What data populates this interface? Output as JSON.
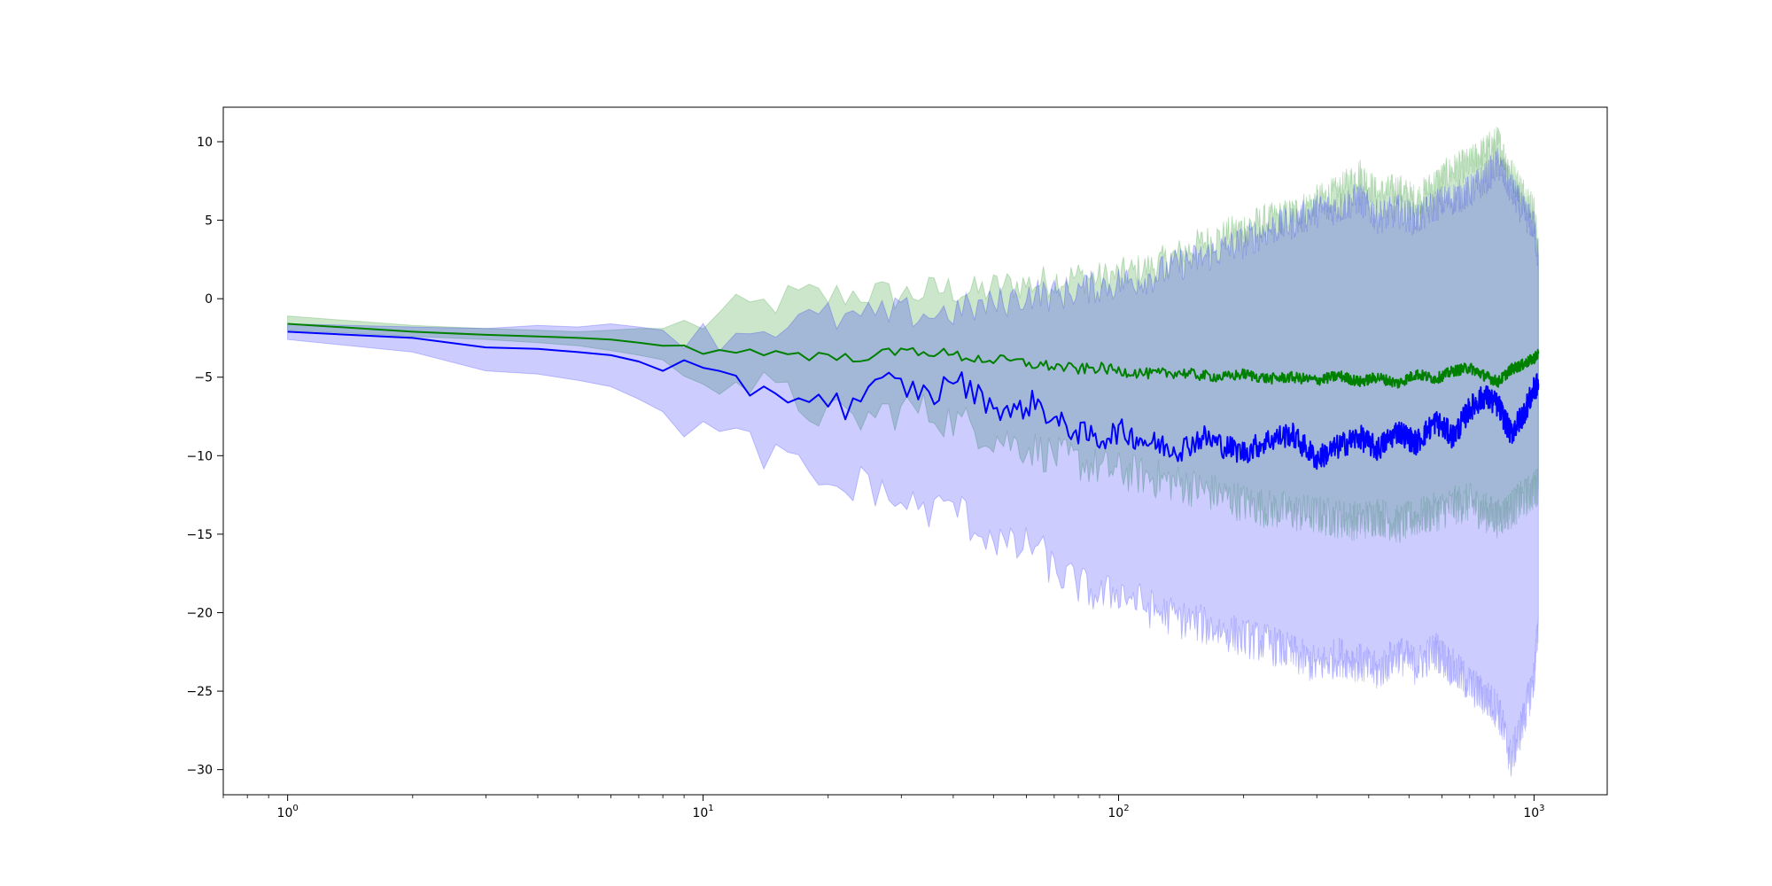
{
  "chart_data": {
    "type": "line",
    "title": "",
    "xlabel": "",
    "ylabel": "",
    "xscale": "log",
    "xlim": [
      0.7,
      1500
    ],
    "ylim": [
      -31.6,
      12.2
    ],
    "x_ticks": [
      {
        "value": 1,
        "base": "10",
        "exp": "0"
      },
      {
        "value": 10,
        "base": "10",
        "exp": "1"
      },
      {
        "value": 100,
        "base": "10",
        "exp": "2"
      },
      {
        "value": 1000,
        "base": "10",
        "exp": "3"
      }
    ],
    "y_ticks": [
      {
        "value": 10,
        "label": "10"
      },
      {
        "value": 5,
        "label": "5"
      },
      {
        "value": 0,
        "label": "0"
      },
      {
        "value": -5,
        "label": "−5"
      },
      {
        "value": -10,
        "label": "−10"
      },
      {
        "value": -15,
        "label": "−15"
      },
      {
        "value": -20,
        "label": "−20"
      },
      {
        "value": -25,
        "label": "−25"
      },
      {
        "value": -30,
        "label": "−30"
      }
    ],
    "grid": false,
    "legend": null,
    "series": [
      {
        "color": "#008000",
        "band_color": "#008000",
        "x": [
          1,
          2,
          3,
          4,
          5,
          6,
          7,
          8,
          9,
          10,
          12,
          14,
          16,
          18,
          20,
          22,
          25,
          28,
          32,
          36,
          40,
          45,
          50,
          56,
          63,
          70,
          80,
          90,
          100,
          120,
          140,
          160,
          180,
          200,
          230,
          260,
          300,
          340,
          380,
          420,
          470,
          520,
          580,
          640,
          700,
          760,
          820,
          880,
          940,
          1000,
          1024
        ],
        "mean": [
          -1.6,
          -2.1,
          -2.3,
          -2.4,
          -2.5,
          -2.6,
          -2.8,
          -3.0,
          -3.1,
          -3.2,
          -3.3,
          -3.5,
          -3.4,
          -3.6,
          -3.7,
          -3.8,
          -3.6,
          -3.5,
          -3.3,
          -3.4,
          -3.6,
          -3.8,
          -3.9,
          -4.0,
          -4.2,
          -4.3,
          -4.5,
          -4.4,
          -4.6,
          -4.8,
          -4.7,
          -4.9,
          -5.0,
          -4.8,
          -5.1,
          -5.0,
          -5.2,
          -4.9,
          -5.3,
          -5.0,
          -5.4,
          -4.8,
          -5.1,
          -4.6,
          -4.4,
          -4.9,
          -5.3,
          -4.5,
          -4.2,
          -3.8,
          -3.5
        ],
        "lower": [
          -2.0,
          -2.4,
          -2.6,
          -2.8,
          -3.0,
          -3.3,
          -3.6,
          -3.9,
          -4.2,
          -4.6,
          -5.2,
          -5.8,
          -6.4,
          -7.0,
          -7.4,
          -7.8,
          -7.6,
          -7.2,
          -7.0,
          -7.4,
          -7.8,
          -8.2,
          -8.8,
          -9.2,
          -9.6,
          -10.0,
          -10.4,
          -10.8,
          -11.0,
          -11.4,
          -11.8,
          -12.2,
          -12.6,
          -13.0,
          -13.4,
          -13.6,
          -13.8,
          -14.0,
          -14.2,
          -13.8,
          -14.4,
          -14.0,
          -13.6,
          -13.2,
          -13.0,
          -13.6,
          -14.0,
          -13.4,
          -12.8,
          -12.2,
          -11.8
        ],
        "upper": [
          -1.1,
          -1.7,
          -1.9,
          -2.0,
          -2.1,
          -2.0,
          -1.9,
          -1.9,
          -1.7,
          -1.5,
          -0.8,
          -0.4,
          0.0,
          0.2,
          0.1,
          0.3,
          0.4,
          0.2,
          0.3,
          0.5,
          0.6,
          0.4,
          0.7,
          0.9,
          1.0,
          1.2,
          1.4,
          1.3,
          1.5,
          2.0,
          2.8,
          3.6,
          4.0,
          4.6,
          5.0,
          5.4,
          6.2,
          6.8,
          8.0,
          6.6,
          7.0,
          6.2,
          7.4,
          8.2,
          8.6,
          9.4,
          10.0,
          8.0,
          6.8,
          5.6,
          3.0
        ]
      },
      {
        "color": "#0000ff",
        "band_color": "#0000ff",
        "x": [
          1,
          2,
          3,
          4,
          5,
          6,
          7,
          8,
          9,
          10,
          12,
          14,
          16,
          18,
          20,
          22,
          25,
          28,
          32,
          36,
          40,
          45,
          50,
          56,
          63,
          70,
          80,
          90,
          100,
          120,
          140,
          160,
          180,
          200,
          230,
          260,
          300,
          340,
          380,
          420,
          470,
          520,
          580,
          640,
          700,
          760,
          820,
          880,
          940,
          1000,
          1024
        ],
        "mean": [
          -2.1,
          -2.5,
          -3.1,
          -3.2,
          -3.4,
          -3.6,
          -4.0,
          -4.6,
          -4.5,
          -5.2,
          -5.4,
          -5.8,
          -6.1,
          -6.2,
          -6.4,
          -6.9,
          -6.0,
          -5.3,
          -5.8,
          -6.2,
          -5.0,
          -6.0,
          -6.8,
          -7.3,
          -6.5,
          -7.8,
          -8.5,
          -9.0,
          -8.4,
          -9.2,
          -9.6,
          -8.8,
          -9.4,
          -9.8,
          -9.0,
          -8.6,
          -10.2,
          -9.4,
          -8.8,
          -9.6,
          -8.4,
          -9.2,
          -7.8,
          -8.8,
          -7.0,
          -6.2,
          -6.8,
          -8.6,
          -7.4,
          -5.8,
          -5.4
        ],
        "lower": [
          -2.6,
          -3.4,
          -4.6,
          -4.8,
          -5.2,
          -5.6,
          -6.4,
          -7.2,
          -7.8,
          -8.4,
          -9.2,
          -9.8,
          -10.6,
          -11.4,
          -12.0,
          -12.2,
          -11.6,
          -12.8,
          -13.2,
          -13.6,
          -13.0,
          -14.6,
          -15.2,
          -16.0,
          -15.6,
          -17.4,
          -18.2,
          -19.0,
          -18.6,
          -19.8,
          -20.4,
          -20.8,
          -21.2,
          -21.6,
          -22.0,
          -22.6,
          -23.4,
          -22.8,
          -23.2,
          -23.8,
          -22.6,
          -23.4,
          -22.4,
          -23.6,
          -24.6,
          -25.4,
          -26.2,
          -29.4,
          -27.0,
          -24.2,
          -20.8
        ],
        "upper": [
          -1.6,
          -1.8,
          -1.9,
          -1.7,
          -1.8,
          -1.6,
          -1.8,
          -2.0,
          -2.2,
          -2.4,
          -2.2,
          -1.8,
          -1.6,
          -1.4,
          -1.2,
          -1.3,
          -1.2,
          -1.0,
          -0.9,
          -1.0,
          -0.8,
          -0.6,
          -0.4,
          0.0,
          0.4,
          0.2,
          0.6,
          0.8,
          1.0,
          1.4,
          2.2,
          2.6,
          3.2,
          3.6,
          4.4,
          4.8,
          5.6,
          5.8,
          6.4,
          5.2,
          5.6,
          5.0,
          6.0,
          6.4,
          6.8,
          7.6,
          8.6,
          7.0,
          5.6,
          4.6,
          2.6
        ]
      }
    ]
  }
}
